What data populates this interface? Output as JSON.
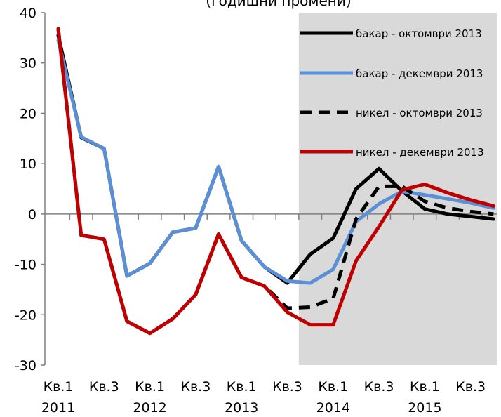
{
  "chart_data": {
    "type": "line",
    "title": "(годишни промени)",
    "ylim": [
      -30,
      40
    ],
    "yticks": [
      -30,
      -20,
      -10,
      0,
      10,
      20,
      30,
      40
    ],
    "quarters_count": 20,
    "x_labels": [
      {
        "index": 0,
        "line1": "Кв.1",
        "line2": "2011"
      },
      {
        "index": 2,
        "line1": "Кв.3",
        "line2": ""
      },
      {
        "index": 4,
        "line1": "Кв.1",
        "line2": "2012"
      },
      {
        "index": 6,
        "line1": "Кв.3",
        "line2": ""
      },
      {
        "index": 8,
        "line1": "Кв.1",
        "line2": "2013"
      },
      {
        "index": 10,
        "line1": "Кв.3",
        "line2": ""
      },
      {
        "index": 12,
        "line1": "Кв.1",
        "line2": "2014"
      },
      {
        "index": 14,
        "line1": "Кв.3",
        "line2": ""
      },
      {
        "index": 16,
        "line1": "Кв.1",
        "line2": "2015"
      },
      {
        "index": 18,
        "line1": "Кв.3",
        "line2": ""
      }
    ],
    "forecast_shading_from_index": 10.5,
    "forecast_color": "#d9d9d9",
    "series": [
      {
        "name": "бакар - октомври 2013",
        "color": "#000000",
        "dash": "solid",
        "values": [
          35.5,
          15.2,
          13.0,
          -12.3,
          -9.8,
          -3.6,
          -2.8,
          9.4,
          -5.3,
          -10.5,
          -13.7,
          -8.0,
          -4.8,
          5.0,
          9.0,
          4.6,
          1.0,
          0.0,
          -0.5,
          -1.0
        ]
      },
      {
        "name": "бакар - декември 2013",
        "color": "#5b8fd6",
        "dash": "solid",
        "values": [
          34.5,
          15.3,
          13.0,
          -12.3,
          -9.8,
          -3.6,
          -2.8,
          9.4,
          -5.3,
          -10.5,
          -13.3,
          -13.7,
          -11.0,
          -1.5,
          2.0,
          4.5,
          3.8,
          3.0,
          2.2,
          1.2
        ]
      },
      {
        "name": "никел - октомври 2013",
        "color": "#000000",
        "dash": "dashed",
        "values": [
          36.8,
          -4.2,
          -5.0,
          -21.3,
          -23.7,
          -20.8,
          -16.0,
          -4.0,
          -12.6,
          -14.3,
          -18.7,
          -18.5,
          -16.8,
          -1.0,
          5.5,
          5.5,
          2.5,
          1.2,
          0.5,
          0.0
        ]
      },
      {
        "name": "никел - декември 2013",
        "color": "#c00000",
        "dash": "solid",
        "values": [
          36.8,
          -4.2,
          -5.0,
          -21.3,
          -23.7,
          -20.8,
          -16.0,
          -4.0,
          -12.6,
          -14.3,
          -19.5,
          -22.0,
          -22.0,
          -9.3,
          -2.5,
          4.8,
          5.9,
          4.2,
          2.8,
          1.6
        ]
      }
    ]
  }
}
